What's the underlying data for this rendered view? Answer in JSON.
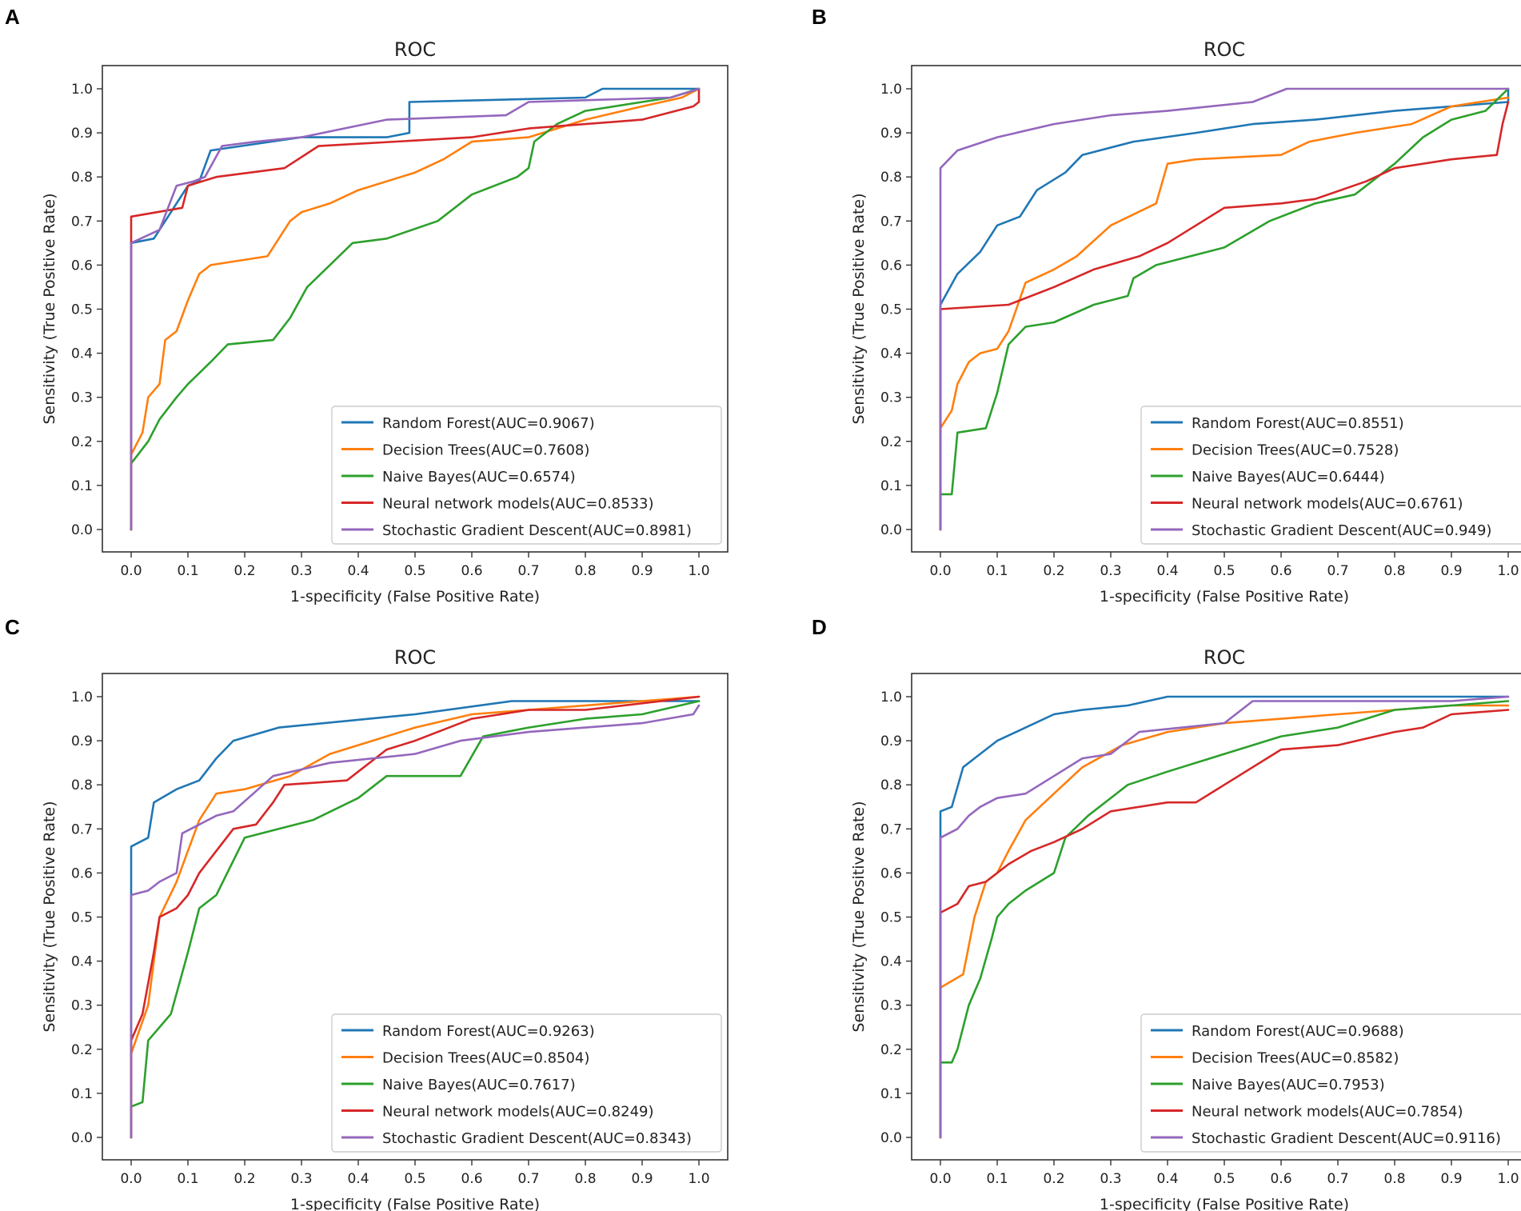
{
  "chart_data": [
    {
      "panel": "A",
      "type": "line",
      "title": "ROC",
      "xlabel": "1-specificity (False Positive Rate)",
      "ylabel": "Sensitivity (True Positive Rate)",
      "xlim": [
        0,
        1
      ],
      "ylim": [
        0,
        1
      ],
      "xticks": [
        "0.0",
        "0.1",
        "0.2",
        "0.3",
        "0.4",
        "0.5",
        "0.6",
        "0.7",
        "0.8",
        "0.9",
        "1.0"
      ],
      "yticks": [
        "0.0",
        "0.1",
        "0.2",
        "0.3",
        "0.4",
        "0.5",
        "0.6",
        "0.7",
        "0.8",
        "0.9",
        "1.0"
      ],
      "legend_position": "lower-right",
      "series": [
        {
          "name": "Random Forest(AUC=0.9067)",
          "color": "#1f77b4",
          "x": [
            0,
            0,
            0.04,
            0.07,
            0.1,
            0.12,
            0.14,
            0.3,
            0.45,
            0.49,
            0.49,
            0.8,
            0.83,
            1
          ],
          "y": [
            0,
            0.65,
            0.66,
            0.72,
            0.78,
            0.79,
            0.86,
            0.89,
            0.89,
            0.9,
            0.97,
            0.98,
            1,
            1
          ]
        },
        {
          "name": "Decision Trees(AUC=0.7608)",
          "color": "#ff7f0e",
          "x": [
            0,
            0,
            0.02,
            0.03,
            0.05,
            0.06,
            0.08,
            0.1,
            0.12,
            0.14,
            0.24,
            0.28,
            0.3,
            0.35,
            0.4,
            0.5,
            0.55,
            0.6,
            0.7,
            0.8,
            0.9,
            0.97,
            1
          ],
          "y": [
            0,
            0.17,
            0.22,
            0.3,
            0.33,
            0.43,
            0.45,
            0.52,
            0.58,
            0.6,
            0.62,
            0.7,
            0.72,
            0.74,
            0.77,
            0.81,
            0.84,
            0.88,
            0.89,
            0.93,
            0.96,
            0.98,
            1
          ]
        },
        {
          "name": "Naive Bayes(AUC=0.6574)",
          "color": "#2ca02c",
          "x": [
            0,
            0,
            0.03,
            0.05,
            0.08,
            0.1,
            0.14,
            0.17,
            0.25,
            0.28,
            0.31,
            0.35,
            0.39,
            0.45,
            0.54,
            0.56,
            0.6,
            0.68,
            0.7,
            0.71,
            0.75,
            0.8,
            0.9,
            0.95,
            1
          ],
          "y": [
            0,
            0.15,
            0.2,
            0.25,
            0.3,
            0.33,
            0.38,
            0.42,
            0.43,
            0.48,
            0.55,
            0.6,
            0.65,
            0.66,
            0.7,
            0.72,
            0.76,
            0.8,
            0.82,
            0.88,
            0.92,
            0.95,
            0.97,
            0.98,
            1
          ]
        },
        {
          "name": "Neural network models(AUC=0.8533)",
          "color": "#d62728",
          "x": [
            0,
            0,
            0.09,
            0.1,
            0.15,
            0.27,
            0.33,
            0.6,
            0.7,
            0.9,
            0.99,
            1,
            1
          ],
          "y": [
            0,
            0.71,
            0.73,
            0.78,
            0.8,
            0.82,
            0.87,
            0.89,
            0.91,
            0.93,
            0.96,
            0.97,
            1
          ]
        },
        {
          "name": "Stochastic Gradient Descent(AUC=0.8981)",
          "color": "#9467bd",
          "x": [
            0,
            0,
            0.05,
            0.08,
            0.11,
            0.13,
            0.16,
            0.22,
            0.3,
            0.45,
            0.66,
            0.7,
            0.95,
            1
          ],
          "y": [
            0,
            0.65,
            0.68,
            0.78,
            0.79,
            0.8,
            0.87,
            0.88,
            0.89,
            0.93,
            0.94,
            0.97,
            0.98,
            1
          ]
        }
      ]
    },
    {
      "panel": "B",
      "type": "line",
      "title": "ROC",
      "xlabel": "1-specificity (False Positive Rate)",
      "ylabel": "Sensitivity (True Positive Rate)",
      "xlim": [
        0,
        1
      ],
      "ylim": [
        0,
        1
      ],
      "xticks": [
        "0.0",
        "0.1",
        "0.2",
        "0.3",
        "0.4",
        "0.5",
        "0.6",
        "0.7",
        "0.8",
        "0.9",
        "1.0"
      ],
      "yticks": [
        "0.0",
        "0.1",
        "0.2",
        "0.3",
        "0.4",
        "0.5",
        "0.6",
        "0.7",
        "0.8",
        "0.9",
        "1.0"
      ],
      "legend_position": "lower-right",
      "series": [
        {
          "name": "Random Forest(AUC=0.8551)",
          "color": "#1f77b4",
          "x": [
            0,
            0,
            0.03,
            0.07,
            0.1,
            0.14,
            0.17,
            0.22,
            0.25,
            0.34,
            0.45,
            0.55,
            0.66,
            0.8,
            1,
            1
          ],
          "y": [
            0,
            0.51,
            0.58,
            0.63,
            0.69,
            0.71,
            0.77,
            0.81,
            0.85,
            0.88,
            0.9,
            0.92,
            0.93,
            0.95,
            0.97,
            1
          ]
        },
        {
          "name": "Decision Trees(AUC=0.7528)",
          "color": "#ff7f0e",
          "x": [
            0,
            0,
            0.02,
            0.03,
            0.05,
            0.07,
            0.1,
            0.12,
            0.15,
            0.2,
            0.24,
            0.3,
            0.38,
            0.4,
            0.45,
            0.6,
            0.65,
            0.73,
            0.83,
            0.9,
            1
          ],
          "y": [
            0,
            0.23,
            0.27,
            0.33,
            0.38,
            0.4,
            0.41,
            0.45,
            0.56,
            0.59,
            0.62,
            0.69,
            0.74,
            0.83,
            0.84,
            0.85,
            0.88,
            0.9,
            0.92,
            0.96,
            0.98
          ]
        },
        {
          "name": "Naive Bayes(AUC=0.6444)",
          "color": "#2ca02c",
          "x": [
            0,
            0,
            0.02,
            0.03,
            0.08,
            0.1,
            0.12,
            0.15,
            0.2,
            0.27,
            0.33,
            0.34,
            0.38,
            0.5,
            0.58,
            0.66,
            0.73,
            0.8,
            0.85,
            0.9,
            0.96,
            1
          ],
          "y": [
            0,
            0.08,
            0.08,
            0.22,
            0.23,
            0.31,
            0.42,
            0.46,
            0.47,
            0.51,
            0.53,
            0.57,
            0.6,
            0.64,
            0.7,
            0.74,
            0.76,
            0.83,
            0.89,
            0.93,
            0.95,
            1
          ]
        },
        {
          "name": "Neural network models(AUC=0.6761)",
          "color": "#d62728",
          "x": [
            0,
            0,
            0.12,
            0.2,
            0.27,
            0.35,
            0.4,
            0.45,
            0.5,
            0.6,
            0.66,
            0.75,
            0.8,
            0.9,
            0.98,
            0.99,
            1
          ],
          "y": [
            0,
            0.5,
            0.51,
            0.55,
            0.59,
            0.62,
            0.65,
            0.69,
            0.73,
            0.74,
            0.75,
            0.79,
            0.82,
            0.84,
            0.85,
            0.92,
            0.97
          ]
        },
        {
          "name": "Stochastic Gradient Descent(AUC=0.949)",
          "color": "#9467bd",
          "x": [
            0,
            0,
            0.03,
            0.1,
            0.2,
            0.3,
            0.4,
            0.55,
            0.61,
            0.7,
            1
          ],
          "y": [
            0,
            0.82,
            0.86,
            0.89,
            0.92,
            0.94,
            0.95,
            0.97,
            1,
            1,
            1
          ]
        }
      ]
    },
    {
      "panel": "C",
      "type": "line",
      "title": "ROC",
      "xlabel": "1-specificity (False Positive Rate)",
      "ylabel": "Sensitivity (True Positive Rate)",
      "xlim": [
        0,
        1
      ],
      "ylim": [
        0,
        1
      ],
      "xticks": [
        "0.0",
        "0.1",
        "0.2",
        "0.3",
        "0.4",
        "0.5",
        "0.6",
        "0.7",
        "0.8",
        "0.9",
        "1.0"
      ],
      "yticks": [
        "0.0",
        "0.1",
        "0.2",
        "0.3",
        "0.4",
        "0.5",
        "0.6",
        "0.7",
        "0.8",
        "0.9",
        "1.0"
      ],
      "legend_position": "lower-right",
      "series": [
        {
          "name": "Random Forest(AUC=0.9263)",
          "color": "#1f77b4",
          "x": [
            0,
            0,
            0.03,
            0.04,
            0.08,
            0.12,
            0.15,
            0.18,
            0.26,
            0.5,
            0.67,
            1
          ],
          "y": [
            0,
            0.66,
            0.68,
            0.76,
            0.79,
            0.81,
            0.86,
            0.9,
            0.93,
            0.96,
            0.99,
            0.99
          ]
        },
        {
          "name": "Decision Trees(AUC=0.8504)",
          "color": "#ff7f0e",
          "x": [
            0,
            0,
            0.03,
            0.05,
            0.08,
            0.1,
            0.12,
            0.15,
            0.2,
            0.28,
            0.35,
            0.4,
            0.5,
            0.6,
            1
          ],
          "y": [
            0,
            0.19,
            0.3,
            0.5,
            0.58,
            0.65,
            0.72,
            0.78,
            0.79,
            0.82,
            0.87,
            0.89,
            0.93,
            0.96,
            1
          ]
        },
        {
          "name": "Naive Bayes(AUC=0.7617)",
          "color": "#2ca02c",
          "x": [
            0,
            0,
            0.02,
            0.03,
            0.07,
            0.1,
            0.12,
            0.15,
            0.2,
            0.26,
            0.32,
            0.4,
            0.45,
            0.58,
            0.62,
            0.7,
            0.8,
            0.9,
            1
          ],
          "y": [
            0,
            0.07,
            0.08,
            0.22,
            0.28,
            0.42,
            0.52,
            0.55,
            0.68,
            0.7,
            0.72,
            0.77,
            0.82,
            0.82,
            0.91,
            0.93,
            0.95,
            0.96,
            0.99
          ]
        },
        {
          "name": "Neural network models(AUC=0.8249)",
          "color": "#d62728",
          "x": [
            0,
            0,
            0.02,
            0.04,
            0.05,
            0.08,
            0.1,
            0.12,
            0.15,
            0.18,
            0.22,
            0.25,
            0.27,
            0.38,
            0.45,
            0.5,
            0.6,
            0.7,
            0.8,
            1
          ],
          "y": [
            0,
            0.22,
            0.28,
            0.42,
            0.5,
            0.52,
            0.55,
            0.6,
            0.65,
            0.7,
            0.71,
            0.76,
            0.8,
            0.81,
            0.88,
            0.9,
            0.95,
            0.97,
            0.97,
            1
          ]
        },
        {
          "name": "Stochastic Gradient Descent(AUC=0.8343)",
          "color": "#9467bd",
          "x": [
            0,
            0,
            0.03,
            0.05,
            0.08,
            0.09,
            0.12,
            0.15,
            0.18,
            0.25,
            0.35,
            0.5,
            0.58,
            0.7,
            0.8,
            0.9,
            0.99,
            1
          ],
          "y": [
            0,
            0.55,
            0.56,
            0.58,
            0.6,
            0.69,
            0.71,
            0.73,
            0.74,
            0.82,
            0.85,
            0.87,
            0.9,
            0.92,
            0.93,
            0.94,
            0.96,
            0.98
          ]
        }
      ]
    },
    {
      "panel": "D",
      "type": "line",
      "title": "ROC",
      "xlabel": "1-specificity (False Positive Rate)",
      "ylabel": "Sensitivity (True Positive Rate)",
      "xlim": [
        0,
        1
      ],
      "ylim": [
        0,
        1
      ],
      "xticks": [
        "0.0",
        "0.1",
        "0.2",
        "0.3",
        "0.4",
        "0.5",
        "0.6",
        "0.7",
        "0.8",
        "0.9",
        "1.0"
      ],
      "yticks": [
        "0.0",
        "0.1",
        "0.2",
        "0.3",
        "0.4",
        "0.5",
        "0.6",
        "0.7",
        "0.8",
        "0.9",
        "1.0"
      ],
      "legend_position": "lower-right",
      "series": [
        {
          "name": "Random Forest(AUC=0.9688)",
          "color": "#1f77b4",
          "x": [
            0,
            0,
            0.02,
            0.04,
            0.06,
            0.1,
            0.15,
            0.2,
            0.25,
            0.33,
            0.4,
            1
          ],
          "y": [
            0,
            0.74,
            0.75,
            0.84,
            0.86,
            0.9,
            0.93,
            0.96,
            0.97,
            0.98,
            1,
            1
          ]
        },
        {
          "name": "Decision Trees(AUC=0.8582)",
          "color": "#ff7f0e",
          "x": [
            0,
            0,
            0.04,
            0.06,
            0.08,
            0.1,
            0.12,
            0.15,
            0.2,
            0.25,
            0.32,
            0.4,
            0.5,
            0.6,
            0.7,
            0.8,
            0.9,
            1
          ],
          "y": [
            0,
            0.34,
            0.37,
            0.5,
            0.58,
            0.6,
            0.65,
            0.72,
            0.78,
            0.84,
            0.89,
            0.92,
            0.94,
            0.95,
            0.96,
            0.97,
            0.98,
            0.98
          ]
        },
        {
          "name": "Naive Bayes(AUC=0.7953)",
          "color": "#2ca02c",
          "x": [
            0,
            0,
            0.02,
            0.03,
            0.05,
            0.07,
            0.09,
            0.1,
            0.12,
            0.15,
            0.2,
            0.22,
            0.26,
            0.33,
            0.4,
            0.5,
            0.6,
            0.7,
            0.8,
            0.9,
            1
          ],
          "y": [
            0,
            0.17,
            0.17,
            0.2,
            0.3,
            0.36,
            0.45,
            0.5,
            0.53,
            0.56,
            0.6,
            0.68,
            0.73,
            0.8,
            0.83,
            0.87,
            0.91,
            0.93,
            0.97,
            0.98,
            0.99
          ]
        },
        {
          "name": "Neural network models(AUC=0.7854)",
          "color": "#d62728",
          "x": [
            0,
            0,
            0.03,
            0.05,
            0.08,
            0.12,
            0.16,
            0.2,
            0.25,
            0.3,
            0.4,
            0.45,
            0.5,
            0.6,
            0.7,
            0.8,
            0.85,
            0.9,
            1
          ],
          "y": [
            0,
            0.51,
            0.53,
            0.57,
            0.58,
            0.62,
            0.65,
            0.67,
            0.7,
            0.74,
            0.76,
            0.76,
            0.8,
            0.88,
            0.89,
            0.92,
            0.93,
            0.96,
            0.97
          ]
        },
        {
          "name": "Stochastic Gradient Descent(AUC=0.9116)",
          "color": "#9467bd",
          "x": [
            0,
            0,
            0.03,
            0.05,
            0.07,
            0.1,
            0.15,
            0.2,
            0.25,
            0.3,
            0.35,
            0.5,
            0.55,
            0.9,
            1
          ],
          "y": [
            0,
            0.68,
            0.7,
            0.73,
            0.75,
            0.77,
            0.78,
            0.82,
            0.86,
            0.87,
            0.92,
            0.94,
            0.99,
            0.99,
            1
          ]
        }
      ]
    }
  ]
}
